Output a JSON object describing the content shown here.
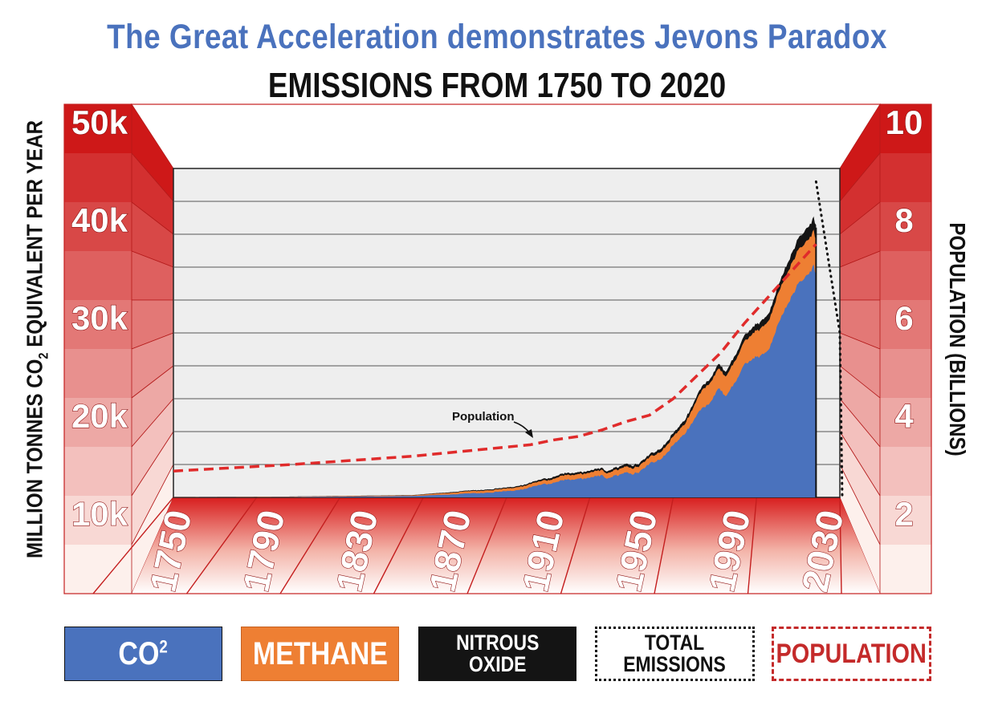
{
  "title": "The Great Acceleration demonstrates Jevons Paradox",
  "subtitle": "EMISSIONS FROM 1750 TO 2020",
  "colors": {
    "title": "#4a72bd",
    "co2": "#4a72bd",
    "methane": "#ee7f33",
    "nitrous_oxide": "#141414",
    "population": "#e02b2b",
    "frame_red": "#d42020",
    "panel_bg": "#eeeeee"
  },
  "legend": {
    "co2_main": "CO",
    "co2_sup": "2",
    "methane": "METHANE",
    "nitrous": "NITROUS\nOXIDE",
    "total": "TOTAL\nEMISSIONS",
    "population": "POPULATION"
  },
  "chart_data": {
    "type": "area",
    "title": "The Great Acceleration demonstrates Jevons Paradox",
    "subtitle": "EMISSIONS FROM 1750 TO 2020",
    "ylabel_left": "MILLION TONNES CO2 EQUIVALENT PER YEAR",
    "ylabel_right": "POPULATION (BILLIONS)",
    "y_left_ticks": [
      "10k",
      "20k",
      "30k",
      "40k",
      "50k"
    ],
    "y_right_ticks": [
      "2",
      "4",
      "6",
      "8",
      "10"
    ],
    "x_ticks": [
      "1750",
      "1790",
      "1830",
      "1870",
      "1910",
      "1950",
      "1990",
      "2030"
    ],
    "annotation": "Population",
    "x": [
      1750,
      1800,
      1850,
      1870,
      1890,
      1900,
      1910,
      1913,
      1918,
      1920,
      1928,
      1930,
      1932,
      1940,
      1945,
      1950,
      1955,
      1960,
      1965,
      1970,
      1973,
      1975,
      1979,
      1980,
      1982,
      1985,
      1990,
      1995,
      2000,
      2005,
      2010,
      2012,
      2015,
      2019,
      2020
    ],
    "series": [
      {
        "name": "CO2",
        "values": [
          10,
          50,
          200,
          500,
          900,
          1500,
          2300,
          2700,
          2600,
          2700,
          3400,
          3300,
          2700,
          3900,
          3500,
          5000,
          6100,
          7800,
          9600,
          12800,
          14000,
          13800,
          16500,
          16100,
          15500,
          17200,
          20000,
          21300,
          22500,
          27000,
          30500,
          32500,
          33500,
          35000,
          33500
        ]
      },
      {
        "name": "Methane",
        "values": [
          20,
          50,
          100,
          300,
          400,
          500,
          600,
          700,
          700,
          700,
          800,
          800,
          800,
          900,
          900,
          1000,
          1100,
          1300,
          1500,
          2300,
          2900,
          3000,
          3000,
          3000,
          3000,
          3200,
          3500,
          4000,
          4400,
          4700,
          5000,
          5100,
          5200,
          5300,
          5300
        ]
      },
      {
        "name": "Nitrous Oxide",
        "values": [
          20,
          30,
          40,
          100,
          150,
          200,
          300,
          300,
          300,
          300,
          300,
          300,
          300,
          400,
          400,
          400,
          500,
          500,
          600,
          600,
          600,
          600,
          700,
          700,
          700,
          800,
          900,
          1000,
          1100,
          1200,
          1500,
          1700,
          1900,
          2000,
          2200
        ]
      }
    ],
    "total_emissions": {
      "x": [
        2020,
        2030,
        2031
      ],
      "values": [
        48000,
        25000,
        0
      ]
    },
    "population": {
      "x": [
        1750,
        1800,
        1850,
        1900,
        1910,
        1920,
        1930,
        1940,
        1950,
        1960,
        1970,
        1980,
        1990,
        2000,
        2010,
        2020
      ],
      "values": [
        0.8,
        1.0,
        1.25,
        1.6,
        1.75,
        1.85,
        2.05,
        2.3,
        2.5,
        3.0,
        3.7,
        4.4,
        5.3,
        6.1,
        6.9,
        7.7
      ]
    },
    "y_left_range": [
      0,
      50000
    ],
    "y_right_range": [
      0,
      10
    ],
    "x_range": [
      1750,
      2030
    ],
    "grid": true,
    "legend_position": "bottom"
  }
}
